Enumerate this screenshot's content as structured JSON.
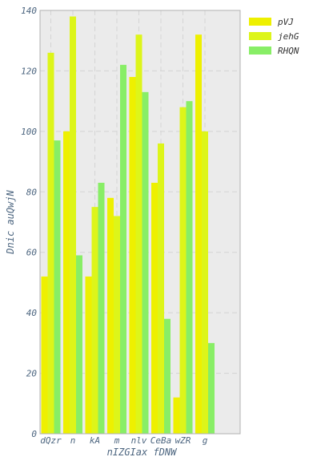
{
  "chart_data": {
    "type": "bar",
    "categories": [
      "dQzr",
      "n",
      "kA",
      "m",
      "nlv",
      "CeBa",
      "wZR",
      "g"
    ],
    "series": [
      {
        "name": "pVJ",
        "color": "#eef000",
        "values": [
          52,
          100,
          52,
          78,
          118,
          83,
          12,
          132
        ]
      },
      {
        "name": "jehG",
        "color": "#ddf51a",
        "values": [
          126,
          138,
          75,
          72,
          132,
          96,
          108,
          100
        ]
      },
      {
        "name": "RHQN",
        "color": "#88ee66",
        "values": [
          97,
          59,
          83,
          122,
          113,
          38,
          110,
          30
        ]
      }
    ],
    "xlabel_lines": [
      "nIZGIax fDNW"
    ],
    "ylabel": "Dnic auQwjN",
    "ylim": [
      0,
      140
    ],
    "yticks": [
      0,
      20,
      40,
      60,
      80,
      100,
      120,
      140
    ],
    "grid": true,
    "legend_position": "top-right",
    "plot_background": "#ebebeb"
  }
}
